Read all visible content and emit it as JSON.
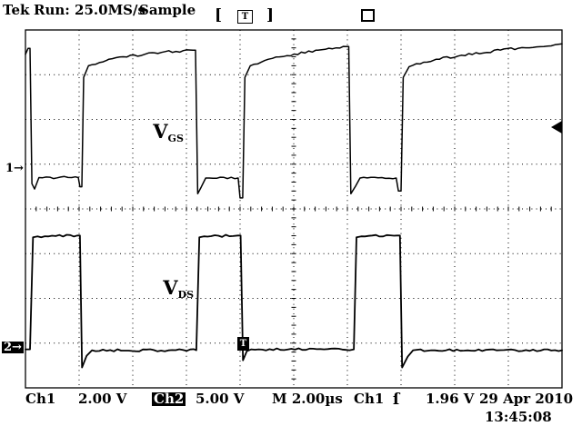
{
  "header": {
    "brand": "Tek",
    "status": "Run: 25.0MS/s",
    "mode": "Sample"
  },
  "trigger_position_indicator": {
    "left_bracket": "[",
    "label": "T",
    "right_bracket": "]"
  },
  "markers": {
    "ch1_ground": "1→",
    "ch2_ground": "2→",
    "trigger_time_label": "T"
  },
  "wave_labels": {
    "ch1_main": "V",
    "ch1_sub": "GS",
    "ch2_main": "V",
    "ch2_sub": "DS"
  },
  "readout": {
    "ch1_label": "Ch1",
    "ch1_scale": "2.00 V",
    "ch2_label": "Ch2",
    "ch2_scale": "5.00 V",
    "timebase": "M 2.00µs",
    "trigger_source": "Ch1",
    "trigger_slope": "ſ",
    "trigger_level": "1.96 V",
    "date": "29 Apr 2010",
    "time": "13:45:08"
  },
  "colors": {
    "ink": "#000000",
    "paper": "#ffffff"
  },
  "chart_data": {
    "type": "line",
    "x_units": "µs",
    "timebase_us_per_div": 2.0,
    "divisions_x": 10,
    "divisions_y": 8,
    "sample_rate_label": "25.0MS/s",
    "acquisition_mode": "Sample",
    "ch1_volts_per_div_label": "2.00 V",
    "ch2_volts_per_div_label": "5.00 V",
    "trigger": {
      "source": "Ch1",
      "level_v": 1.96,
      "slope": "rising",
      "time_us": 8.1
    },
    "series": [
      {
        "name": "V_GS (Ch1)",
        "volts_per_div": 2.0,
        "ground_div_from_top": 3.27,
        "points": [
          [
            0,
            5.45
          ],
          [
            0.1,
            5.72
          ],
          [
            0.17,
            5.72
          ],
          [
            0.24,
            -0.33
          ],
          [
            0.34,
            -0.57
          ],
          [
            0.5,
            -0.06
          ],
          [
            1.97,
            -0.06
          ],
          [
            2.03,
            -0.47
          ],
          [
            2.1,
            -0.47
          ],
          [
            2.17,
            4.42
          ],
          [
            2.35,
            4.94
          ],
          [
            3.1,
            5.23
          ],
          [
            4.8,
            5.52
          ],
          [
            6.24,
            5.64
          ],
          [
            6.34,
            5.64
          ],
          [
            6.42,
            -0.78
          ],
          [
            6.55,
            -0.49
          ],
          [
            6.72,
            -0.08
          ],
          [
            7.93,
            -0.08
          ],
          [
            8.0,
            -0.97
          ],
          [
            8.1,
            -0.97
          ],
          [
            8.18,
            4.42
          ],
          [
            8.38,
            4.94
          ],
          [
            9.2,
            5.27
          ],
          [
            10.9,
            5.64
          ],
          [
            11.95,
            5.8
          ],
          [
            12.05,
            5.8
          ],
          [
            12.13,
            -0.78
          ],
          [
            12.3,
            -0.45
          ],
          [
            12.47,
            -0.08
          ],
          [
            13.82,
            -0.08
          ],
          [
            13.9,
            -0.66
          ],
          [
            14.0,
            -0.66
          ],
          [
            14.08,
            4.42
          ],
          [
            14.3,
            4.9
          ],
          [
            15.3,
            5.23
          ],
          [
            17.7,
            5.64
          ],
          [
            20.0,
            5.92
          ]
        ]
      },
      {
        "name": "V_DS (Ch2)",
        "volts_per_div": 5.0,
        "ground_div_from_top": 7.13,
        "points": [
          [
            0,
            -0.05
          ],
          [
            0.17,
            -0.05
          ],
          [
            0.28,
            12.48
          ],
          [
            0.45,
            12.58
          ],
          [
            1.93,
            12.68
          ],
          [
            2.03,
            12.68
          ],
          [
            2.11,
            -2.08
          ],
          [
            2.28,
            -0.76
          ],
          [
            2.48,
            -0.15
          ],
          [
            6.37,
            -0.15
          ],
          [
            6.48,
            12.48
          ],
          [
            6.65,
            12.58
          ],
          [
            7.92,
            12.68
          ],
          [
            8.02,
            12.68
          ],
          [
            8.11,
            -1.27
          ],
          [
            8.25,
            -0.25
          ],
          [
            8.42,
            -0.05
          ],
          [
            12.24,
            -0.05
          ],
          [
            12.34,
            12.48
          ],
          [
            12.52,
            12.58
          ],
          [
            13.85,
            12.68
          ],
          [
            13.96,
            12.68
          ],
          [
            14.04,
            -2.08
          ],
          [
            14.25,
            -0.86
          ],
          [
            14.45,
            -0.15
          ],
          [
            20.0,
            -0.15
          ]
        ]
      }
    ]
  }
}
